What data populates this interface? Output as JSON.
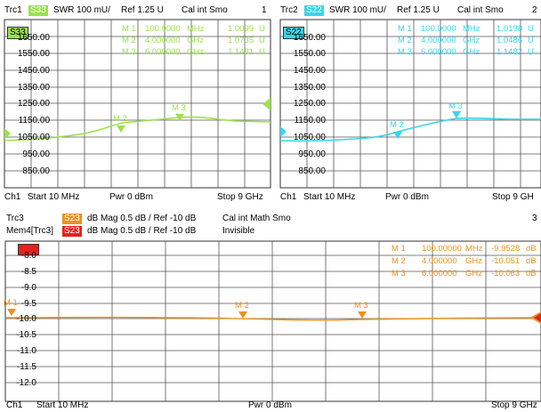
{
  "colors": {
    "s33": "#9be24a",
    "s22": "#38d6ea",
    "s23": "#f0901a",
    "mem": "#e8201e",
    "grid": "#333333",
    "bg": "#ffffff"
  },
  "top_left": {
    "trace": "Trc1",
    "param": "S33",
    "fmt": "SWR  100 mU/",
    "ref": "Ref 1.25 U",
    "cal": "Cal int Smo",
    "num": "1",
    "param_box": "S33",
    "yticks": [
      "1650.00",
      "1550.00",
      "1450.00",
      "1350.00",
      "1250.00",
      "1150.00",
      "1050.00",
      "950.00",
      "850.00"
    ],
    "markers": [
      {
        "id": "M 1",
        "freq": "100.0000",
        "unit": "MHz",
        "value": "1.0099",
        "vunit": "U"
      },
      {
        "id": "M 2",
        "freq": "4.000000",
        "unit": "GHz",
        "value": "1.0735",
        "vunit": "U"
      },
      {
        "id": "M 3",
        "freq": "6.000000",
        "unit": "GHz",
        "value": "1.1481",
        "vunit": "U"
      }
    ],
    "marker_labels": [
      "M 2",
      "M 3"
    ],
    "footer": {
      "ch": "Ch1",
      "start": "Start  10 MHz",
      "pwr": "Pwr  0 dBm",
      "stop": "Stop  9 GHz"
    }
  },
  "top_right": {
    "trace": "Trc2",
    "param": "S22",
    "fmt": "SWR  100 mU/",
    "ref": "Ref 1.25 U",
    "cal": "Cal int Smo",
    "num": "2",
    "param_box": "S22",
    "yticks": [
      "1650.00",
      "1550.00",
      "1450.00",
      "1350.00",
      "1250.00",
      "1150.00",
      "1050.00",
      "950.00",
      "850.00"
    ],
    "markers": [
      {
        "id": "M 1",
        "freq": "100.0000",
        "unit": "MHz",
        "value": "1.0198",
        "vunit": "U"
      },
      {
        "id": "M 2",
        "freq": "4.000000",
        "unit": "GHz",
        "value": "1.0486",
        "vunit": "U"
      },
      {
        "id": "M 3",
        "freq": "6.000000",
        "unit": "GHz",
        "value": "1.1482",
        "vunit": "U"
      }
    ],
    "marker_labels": [
      "M 2",
      "M 3"
    ],
    "footer": {
      "ch": "Ch1",
      "start": "Start  10 MHz",
      "pwr": "Pwr  0 dBm",
      "stop": "Stop  9 GH"
    }
  },
  "bottom": {
    "trace": "Trc3",
    "param": "S23",
    "fmt": "dB Mag  0.5 dB /  Ref -10 dB",
    "cal": "Cal int Math Smo",
    "num": "3",
    "mem_trace": "Mem4[Trc3]",
    "mem_param": "S23",
    "mem_fmt": "dB Mag  0.5 dB /  Ref -10 dB",
    "mem_state": "Invisible",
    "yticks": [
      "-8.0",
      "-8.5",
      "-9.0",
      "-9.5",
      "-10.0",
      "-10.5",
      "-11.0",
      "-11.5",
      "-12.0"
    ],
    "markers": [
      {
        "id": "M 1",
        "freq": "100.00000",
        "unit": "MHz",
        "value": "-9.9528",
        "vunit": "dB"
      },
      {
        "id": "M 2",
        "freq": "4.000000",
        "unit": "GHz",
        "value": "-10.051",
        "vunit": "dB"
      },
      {
        "id": "M 3",
        "freq": "6.000000",
        "unit": "GHz",
        "value": "-10.063",
        "vunit": "dB"
      }
    ],
    "marker_labels": [
      "M 1",
      "M 2",
      "M 3"
    ],
    "footer": {
      "ch": "Ch1",
      "start": "Start  10 MHz",
      "pwr": "Pwr  0 dBm",
      "stop": "Stop  9 GHz"
    }
  }
}
